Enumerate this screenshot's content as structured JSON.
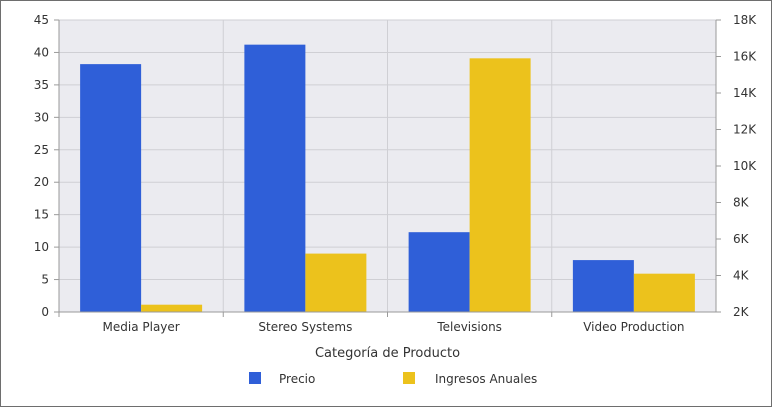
{
  "chart_data": {
    "type": "bar",
    "categories": [
      "Media Player",
      "Stereo Systems",
      "Televisions",
      "Video Production"
    ],
    "series": [
      {
        "name": "Precio",
        "axis": "left",
        "color": "#2f5fd8",
        "values": [
          38.2,
          41.2,
          12.3,
          8.0
        ]
      },
      {
        "name": "Ingresos Anuales",
        "axis": "right",
        "color": "#ecc21c",
        "values": [
          2400,
          5200,
          15900,
          4100
        ]
      }
    ],
    "xlabel": "Categoría de Producto",
    "ylabel_left": "",
    "ylabel_right": "",
    "ylim_left": [
      0,
      45
    ],
    "ylim_right": [
      2000,
      18000
    ],
    "yticks_left": [
      "0",
      "5",
      "10",
      "15",
      "20",
      "25",
      "30",
      "35",
      "40",
      "45"
    ],
    "yticks_right": [
      "2K",
      "4K",
      "6K",
      "8K",
      "10K",
      "12K",
      "14K",
      "16K",
      "18K"
    ],
    "grid": true,
    "plot_background": "#ebebf0",
    "legend_position": "bottom"
  }
}
